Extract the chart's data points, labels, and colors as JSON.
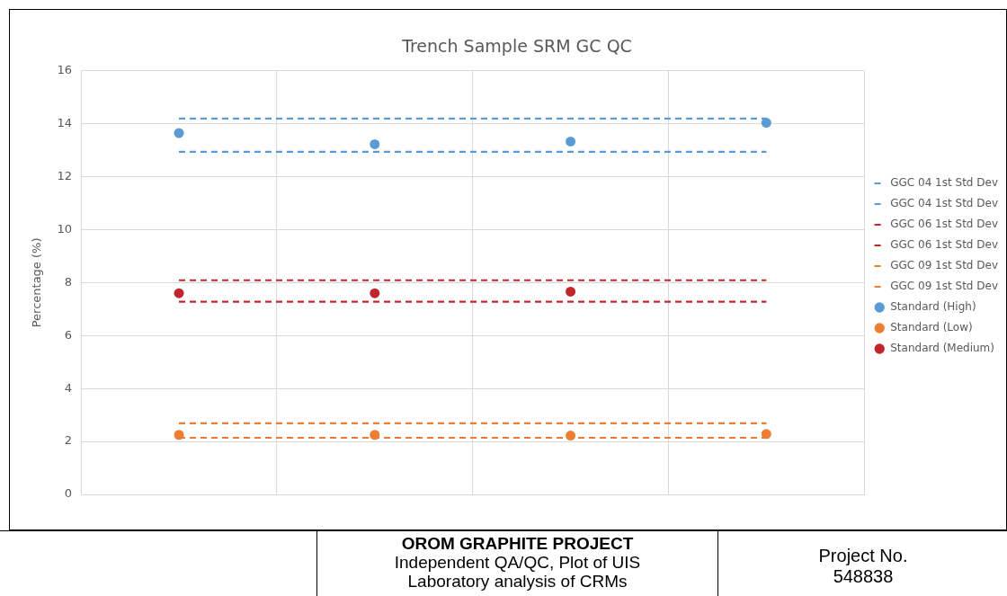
{
  "chart_data": {
    "type": "line",
    "title": "Trench Sample SRM GC QC",
    "ylabel": "Percentage (%)",
    "categories": [
      null,
      null,
      null,
      null
    ],
    "ylim": [
      0,
      16
    ],
    "yticks": [
      0,
      2,
      4,
      6,
      8,
      10,
      12,
      14,
      16
    ],
    "grid": true,
    "legend": "right",
    "tick_labels": "y",
    "series": [
      {
        "name": "GGC 04 1st Std Dev",
        "line_style": "dashed",
        "marker": "none",
        "color": "#5b9bd5",
        "values": [
          14.2,
          14.2,
          14.2,
          14.2
        ]
      },
      {
        "name": "GGC 04 1st Std Dev",
        "line_style": "dashed",
        "marker": "none",
        "color": "#5b9bd5",
        "values": [
          12.94,
          12.94,
          12.94,
          12.94
        ]
      },
      {
        "name": "GGC 06 1st Std Dev",
        "line_style": "dashed",
        "marker": "none",
        "color": "#c0272d",
        "values": [
          8.09,
          8.09,
          8.09,
          8.09
        ]
      },
      {
        "name": "GGC 06 1st Std Dev",
        "line_style": "dashed",
        "marker": "none",
        "color": "#c0272d",
        "values": [
          7.28,
          7.28,
          7.28,
          7.28
        ]
      },
      {
        "name": "GGC 09 1st Std Dev",
        "line_style": "dashed",
        "marker": "none",
        "color": "#ed7d31",
        "values": [
          2.69,
          2.69,
          2.69,
          2.69
        ]
      },
      {
        "name": "GGC 09 1st Std Dev",
        "line_style": "dashed",
        "marker": "none",
        "color": "#ed7d31",
        "values": [
          2.14,
          2.14,
          2.14,
          2.14
        ]
      },
      {
        "name": "Standard (High)",
        "type": "scatter",
        "marker": "circle",
        "color": "#5b9bd5",
        "values": [
          13.65,
          13.23,
          13.33,
          14.04
        ]
      },
      {
        "name": "Standard (Low)",
        "type": "scatter",
        "marker": "circle",
        "color": "#ed7d31",
        "values": [
          2.25,
          2.25,
          2.22,
          2.28
        ]
      },
      {
        "name": "Standard (Medium)",
        "type": "scatter",
        "marker": "circle",
        "color": "#c0272d",
        "values": [
          7.6,
          7.6,
          7.66,
          null
        ]
      }
    ],
    "annotations": [
      "OROM GRAPHITE PROJECT",
      "Independent QA/QC, Plot of UIS Laboratory analysis of CRMs",
      "Project No. 548838"
    ]
  }
}
